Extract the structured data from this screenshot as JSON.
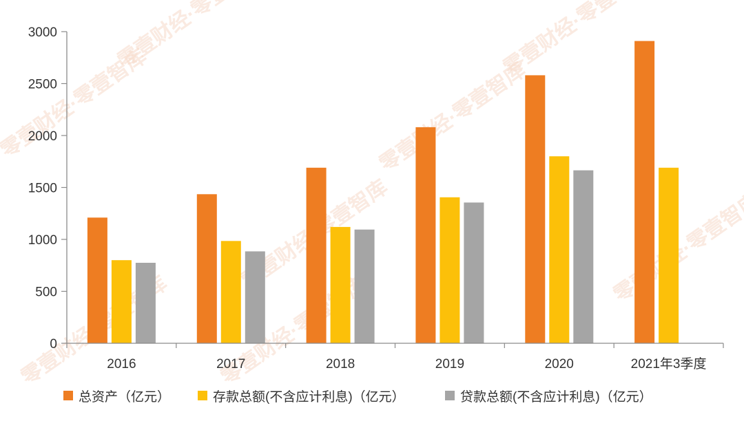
{
  "chart_data": {
    "type": "bar",
    "categories": [
      "2016",
      "2017",
      "2018",
      "2019",
      "2020",
      "2021年3季度"
    ],
    "series": [
      {
        "name": "总资产（亿元）",
        "color": "#ee7d22",
        "values": [
          1210,
          1435,
          1690,
          2080,
          2580,
          2910
        ]
      },
      {
        "name": "存款总额(不含应计利息)（亿元）",
        "color": "#fcc009",
        "values": [
          800,
          985,
          1120,
          1405,
          1800,
          1690
        ]
      },
      {
        "name": "贷款总额(不含应计利息)（亿元）",
        "color": "#a5a5a5",
        "values": [
          775,
          885,
          1095,
          1355,
          1665,
          null
        ]
      }
    ],
    "ylim": [
      0,
      3000
    ],
    "yticks": [
      0,
      500,
      1000,
      1500,
      2000,
      2500,
      3000
    ],
    "grid": false,
    "legend_position": "bottom"
  },
  "watermark": {
    "text": "零壹财经·零壹智库"
  }
}
